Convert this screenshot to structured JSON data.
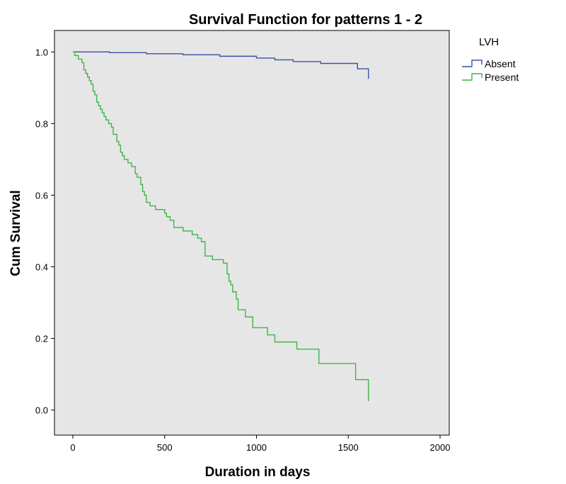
{
  "chart_data": {
    "type": "line",
    "title": "Survival Function for patterns 1 - 2",
    "xlabel": "Duration in days",
    "ylabel": "Cum Survival",
    "xlim": [
      -100,
      2050
    ],
    "ylim": [
      -0.07,
      1.06
    ],
    "xticks": [
      "0",
      "500",
      "1000",
      "1500",
      "2000"
    ],
    "yticks": [
      "0.0",
      "0.2",
      "0.4",
      "0.6",
      "0.8",
      "1.0"
    ],
    "grid": false,
    "legend": {
      "title": "LVH",
      "position": "top-right"
    },
    "step": true,
    "series": [
      {
        "name": "Absent",
        "color": "#3d4fa8",
        "x": [
          0,
          200,
          400,
          600,
          800,
          1000,
          1100,
          1200,
          1350,
          1550,
          1610
        ],
        "y": [
          1.0,
          0.998,
          0.995,
          0.992,
          0.988,
          0.983,
          0.978,
          0.973,
          0.968,
          0.953,
          0.925
        ]
      },
      {
        "name": "Present",
        "color": "#3fb54a",
        "x": [
          0,
          10,
          30,
          50,
          60,
          70,
          80,
          90,
          100,
          110,
          120,
          130,
          140,
          150,
          160,
          170,
          180,
          195,
          210,
          220,
          240,
          250,
          260,
          270,
          280,
          300,
          320,
          340,
          350,
          370,
          380,
          390,
          400,
          420,
          450,
          500,
          510,
          530,
          550,
          600,
          650,
          680,
          700,
          720,
          760,
          820,
          840,
          850,
          860,
          870,
          890,
          900,
          940,
          980,
          1060,
          1100,
          1220,
          1340,
          1540,
          1610
        ],
        "y": [
          1.0,
          0.99,
          0.98,
          0.97,
          0.95,
          0.94,
          0.93,
          0.92,
          0.91,
          0.89,
          0.88,
          0.86,
          0.85,
          0.84,
          0.83,
          0.82,
          0.81,
          0.8,
          0.79,
          0.77,
          0.75,
          0.74,
          0.72,
          0.71,
          0.7,
          0.69,
          0.68,
          0.66,
          0.65,
          0.63,
          0.61,
          0.6,
          0.58,
          0.57,
          0.56,
          0.55,
          0.54,
          0.53,
          0.51,
          0.5,
          0.49,
          0.48,
          0.47,
          0.43,
          0.42,
          0.41,
          0.38,
          0.36,
          0.35,
          0.33,
          0.31,
          0.28,
          0.26,
          0.23,
          0.21,
          0.19,
          0.17,
          0.13,
          0.085,
          0.025
        ]
      }
    ],
    "styles": {
      "plot_background": "#e6e6e6",
      "axis_color": "#000000"
    }
  }
}
